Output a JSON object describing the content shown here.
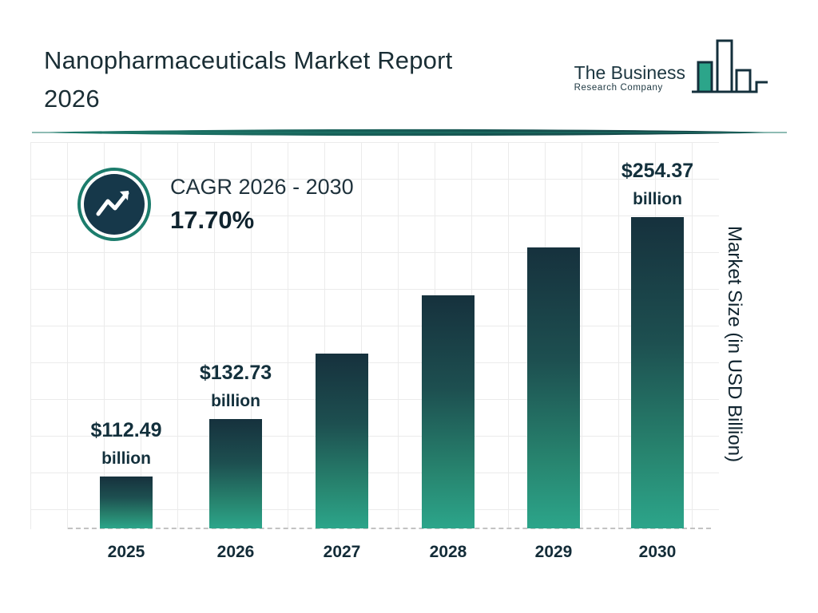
{
  "header": {
    "title_line1": "Nanopharmaceuticals Market Report",
    "title_line2": "2026",
    "logo": {
      "name_line1": "The Business",
      "name_line2": "Research Company"
    }
  },
  "cagr": {
    "label": "CAGR 2026 - 2030",
    "value": "17.70%"
  },
  "chart_data": {
    "type": "bar",
    "title": "Nanopharmaceuticals Market Report 2026",
    "categories": [
      "2025",
      "2026",
      "2027",
      "2028",
      "2029",
      "2030"
    ],
    "values": [
      112.49,
      132.73,
      156.22,
      183.87,
      216.42,
      254.37
    ],
    "bar_labels": [
      {
        "index": 0,
        "line1": "$112.49",
        "line2": "billion"
      },
      {
        "index": 1,
        "line1": "$132.73",
        "line2": "billion"
      },
      {
        "index": 5,
        "line1": "$254.37",
        "line2": "billion"
      }
    ],
    "xlabel": "",
    "ylabel": "Market Size (in USD Billion)",
    "grid": true,
    "legend": false,
    "colors": {
      "bar_gradient_top": "#16313d",
      "bar_gradient_bottom": "#2ca58a",
      "accent_teal": "#1c7c6c",
      "text_navy": "#142f3c"
    }
  }
}
